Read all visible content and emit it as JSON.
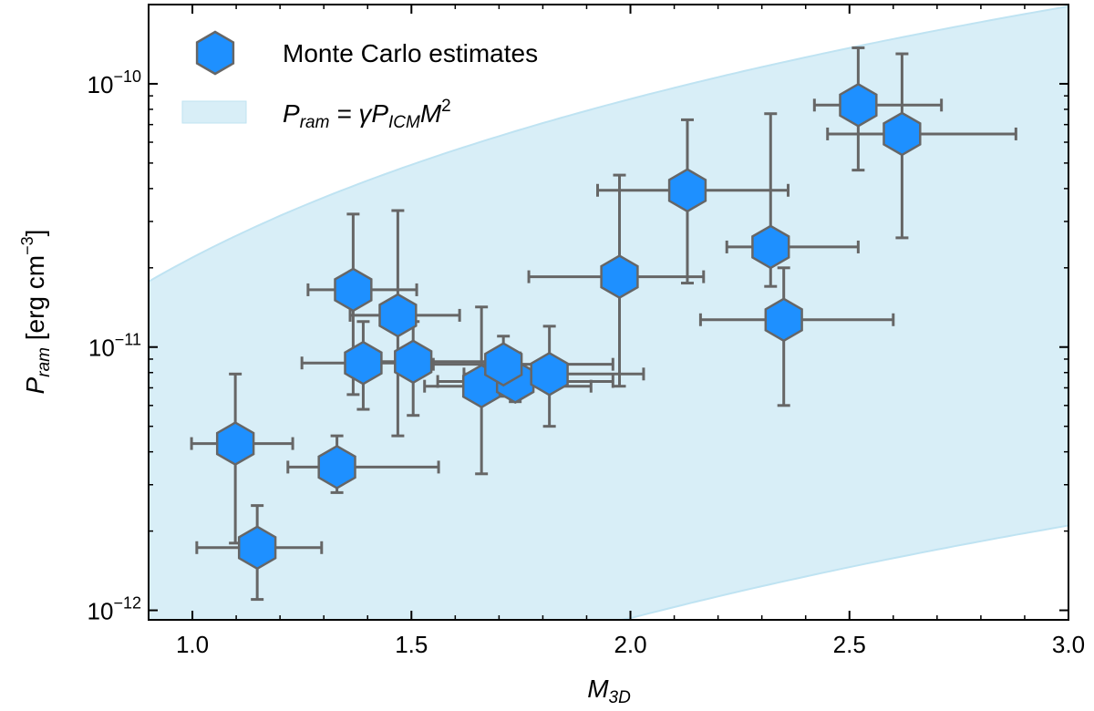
{
  "chart_data": {
    "type": "scatter",
    "xlabel": "M",
    "xlabel_sub": "3D",
    "ylabel_main": "P",
    "ylabel_sub": "ram",
    "ylabel_units": " [erg cm",
    "ylabel_exp": "−3",
    "ylabel_close": "]",
    "xlim": [
      0.9,
      3.0
    ],
    "ylim": [
      9.2e-13,
      2e-10
    ],
    "yscale": "log",
    "grid": false,
    "legend_placement": "top-left",
    "x_ticks": [
      {
        "v": 1.0,
        "label": "1.0"
      },
      {
        "v": 1.5,
        "label": "1.5"
      },
      {
        "v": 2.0,
        "label": "2.0"
      },
      {
        "v": 2.5,
        "label": "2.5"
      },
      {
        "v": 3.0,
        "label": "3.0"
      }
    ],
    "y_ticks": [
      {
        "v": 1e-12,
        "base": "10",
        "exp": "−12"
      },
      {
        "v": 1e-11,
        "base": "10",
        "exp": "−11"
      },
      {
        "v": 1e-10,
        "base": "10",
        "exp": "−10"
      }
    ],
    "colors": {
      "marker": "#1e90ff",
      "marker_edge": "#666666",
      "errorbar": "#666666",
      "band": "#d8eef7",
      "band_edge": "#bfe3f2"
    },
    "series": [
      {
        "name": "Monte Carlo estimates",
        "marker": "hexagon",
        "points": [
          {
            "x": 1.098,
            "y": 4.3e-12,
            "xlo": 0.998,
            "xhi": 1.229,
            "ylo": 1.8e-12,
            "yhi": 7.9e-12
          },
          {
            "x": 1.148,
            "y": 1.73e-12,
            "xlo": 1.01,
            "xhi": 1.295,
            "ylo": 1.1e-12,
            "yhi": 2.5e-12
          },
          {
            "x": 1.33,
            "y": 3.5e-12,
            "xlo": 1.218,
            "xhi": 1.562,
            "ylo": 2.8e-12,
            "yhi": 4.6e-12
          },
          {
            "x": 1.367,
            "y": 1.65e-11,
            "xlo": 1.264,
            "xhi": 1.512,
            "ylo": 6.6e-12,
            "yhi": 3.2e-11
          },
          {
            "x": 1.39,
            "y": 8.7e-12,
            "xlo": 1.25,
            "xhi": 1.53,
            "ylo": 5.8e-12,
            "yhi": 1.25e-11
          },
          {
            "x": 1.469,
            "y": 1.32e-11,
            "xlo": 1.36,
            "xhi": 1.61,
            "ylo": 4.6e-12,
            "yhi": 3.3e-11
          },
          {
            "x": 1.504,
            "y": 8.8e-12,
            "xlo": 1.38,
            "xhi": 1.69,
            "ylo": 5.5e-12,
            "yhi": 1.25e-11
          },
          {
            "x": 1.66,
            "y": 7.1e-12,
            "xlo": 1.53,
            "xhi": 1.91,
            "ylo": 3.3e-12,
            "yhi": 1.42e-11
          },
          {
            "x": 1.737,
            "y": 7.4e-12,
            "xlo": 1.56,
            "xhi": 1.96,
            "ylo": 6.2e-12,
            "yhi": 9.5e-12
          },
          {
            "x": 1.71,
            "y": 8.6e-12,
            "xlo": 1.55,
            "xhi": 1.96,
            "ylo": 6.5e-12,
            "yhi": 1.1e-11
          },
          {
            "x": 1.815,
            "y": 7.9e-12,
            "xlo": 1.62,
            "xhi": 2.03,
            "ylo": 5e-12,
            "yhi": 1.2e-11
          },
          {
            "x": 1.975,
            "y": 1.85e-11,
            "xlo": 1.768,
            "xhi": 2.167,
            "ylo": 7.1e-12,
            "yhi": 4.5e-11
          },
          {
            "x": 2.13,
            "y": 3.94e-11,
            "xlo": 1.925,
            "xhi": 2.36,
            "ylo": 1.75e-11,
            "yhi": 7.3e-11
          },
          {
            "x": 2.32,
            "y": 2.4e-11,
            "xlo": 2.22,
            "xhi": 2.52,
            "ylo": 1.7e-11,
            "yhi": 7.7e-11
          },
          {
            "x": 2.35,
            "y": 1.27e-11,
            "xlo": 2.16,
            "xhi": 2.6,
            "ylo": 6e-12,
            "yhi": 2e-11
          },
          {
            "x": 2.52,
            "y": 8.3e-11,
            "xlo": 2.42,
            "xhi": 2.71,
            "ylo": 4.7e-11,
            "yhi": 1.37e-10
          },
          {
            "x": 2.62,
            "y": 6.45e-11,
            "xlo": 2.45,
            "xhi": 2.88,
            "ylo": 2.6e-11,
            "yhi": 1.3e-10
          }
        ]
      },
      {
        "name": "P_ram = γ P_ICM M^2",
        "type": "band",
        "lower_at_3": 2.1e-12,
        "upper_at_3": 1.97e-10,
        "exponent": 2
      }
    ],
    "legend": [
      {
        "label": "Monte Carlo estimates"
      },
      {
        "label_parts": [
          "P",
          "ram",
          " = γP",
          "ICM",
          "M",
          "2"
        ]
      }
    ]
  }
}
